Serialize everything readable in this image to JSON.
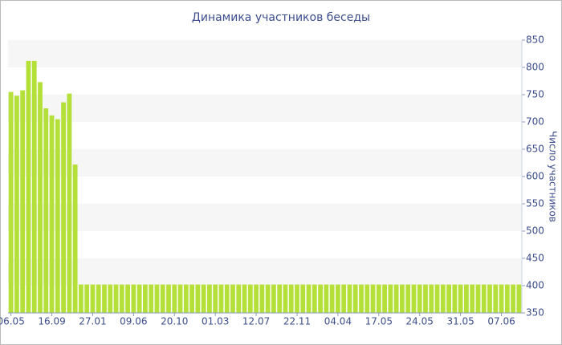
{
  "chart_data": {
    "type": "bar",
    "title": "Динамика участников беседы",
    "y_label": "Число участников",
    "categories": [
      "06.05",
      null,
      null,
      null,
      null,
      null,
      null,
      "16.09",
      null,
      null,
      null,
      null,
      null,
      null,
      "27.01",
      null,
      null,
      null,
      null,
      null,
      null,
      "09.06",
      null,
      null,
      null,
      null,
      null,
      null,
      "20.10",
      null,
      null,
      null,
      null,
      null,
      null,
      "01.03",
      null,
      null,
      null,
      null,
      null,
      null,
      "12.07",
      null,
      null,
      null,
      null,
      null,
      null,
      "22.11",
      null,
      null,
      null,
      null,
      null,
      null,
      "04.04",
      null,
      null,
      null,
      null,
      null,
      null,
      "17.05",
      null,
      null,
      null,
      null,
      null,
      null,
      "24.05",
      null,
      null,
      null,
      null,
      null,
      null,
      "31.05",
      null,
      null,
      null,
      null,
      null,
      null,
      "07.06",
      null,
      null,
      null
    ],
    "values": [
      755,
      748,
      758,
      812,
      812,
      773,
      725,
      712,
      705,
      736,
      752,
      622,
      402,
      402,
      402,
      402,
      402,
      402,
      402,
      402,
      402,
      402,
      402,
      402,
      402,
      402,
      402,
      402,
      402,
      402,
      402,
      402,
      402,
      402,
      402,
      402,
      402,
      402,
      402,
      402,
      402,
      402,
      402,
      402,
      402,
      402,
      402,
      402,
      402,
      402,
      402,
      402,
      402,
      402,
      402,
      402,
      402,
      402,
      402,
      402,
      402,
      402,
      402,
      402,
      402,
      402,
      402,
      402,
      402,
      402,
      402,
      402,
      402,
      402,
      402,
      402,
      402,
      402,
      402,
      402,
      402,
      402,
      402,
      402,
      402,
      402,
      402,
      402
    ],
    "color": "#b5e03a",
    "ylim": [
      350,
      850
    ],
    "yticks": [
      350,
      400,
      450,
      500,
      550,
      600,
      650,
      700,
      750,
      800,
      850
    ],
    "grid": true
  }
}
